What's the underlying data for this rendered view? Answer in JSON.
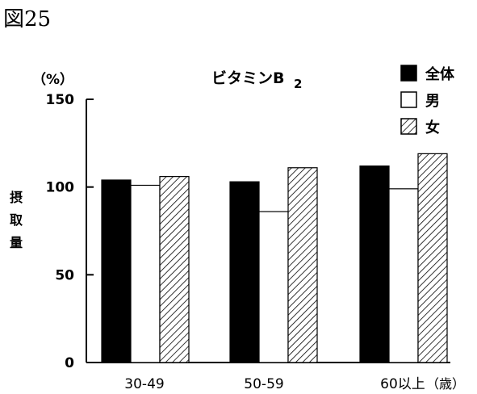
{
  "figure_label": "図25",
  "chart_data": {
    "type": "bar",
    "title": "ビタミンB",
    "title_subscript": "2",
    "unit_label": "（%）",
    "ylabel": "摂取量",
    "xlabel_suffix": "（歳）",
    "categories": [
      "30-49",
      "50-59",
      "60以上"
    ],
    "ylim": [
      0,
      150
    ],
    "yticks": [
      0,
      50,
      100,
      150
    ],
    "grid": false,
    "legend_position": "top-right",
    "series": [
      {
        "name": "全体",
        "values": [
          104,
          103,
          112
        ],
        "fill": "solid"
      },
      {
        "name": "男",
        "values": [
          101,
          86,
          99
        ],
        "fill": "none"
      },
      {
        "name": "女",
        "values": [
          106,
          111,
          119
        ],
        "fill": "hatched"
      }
    ]
  }
}
